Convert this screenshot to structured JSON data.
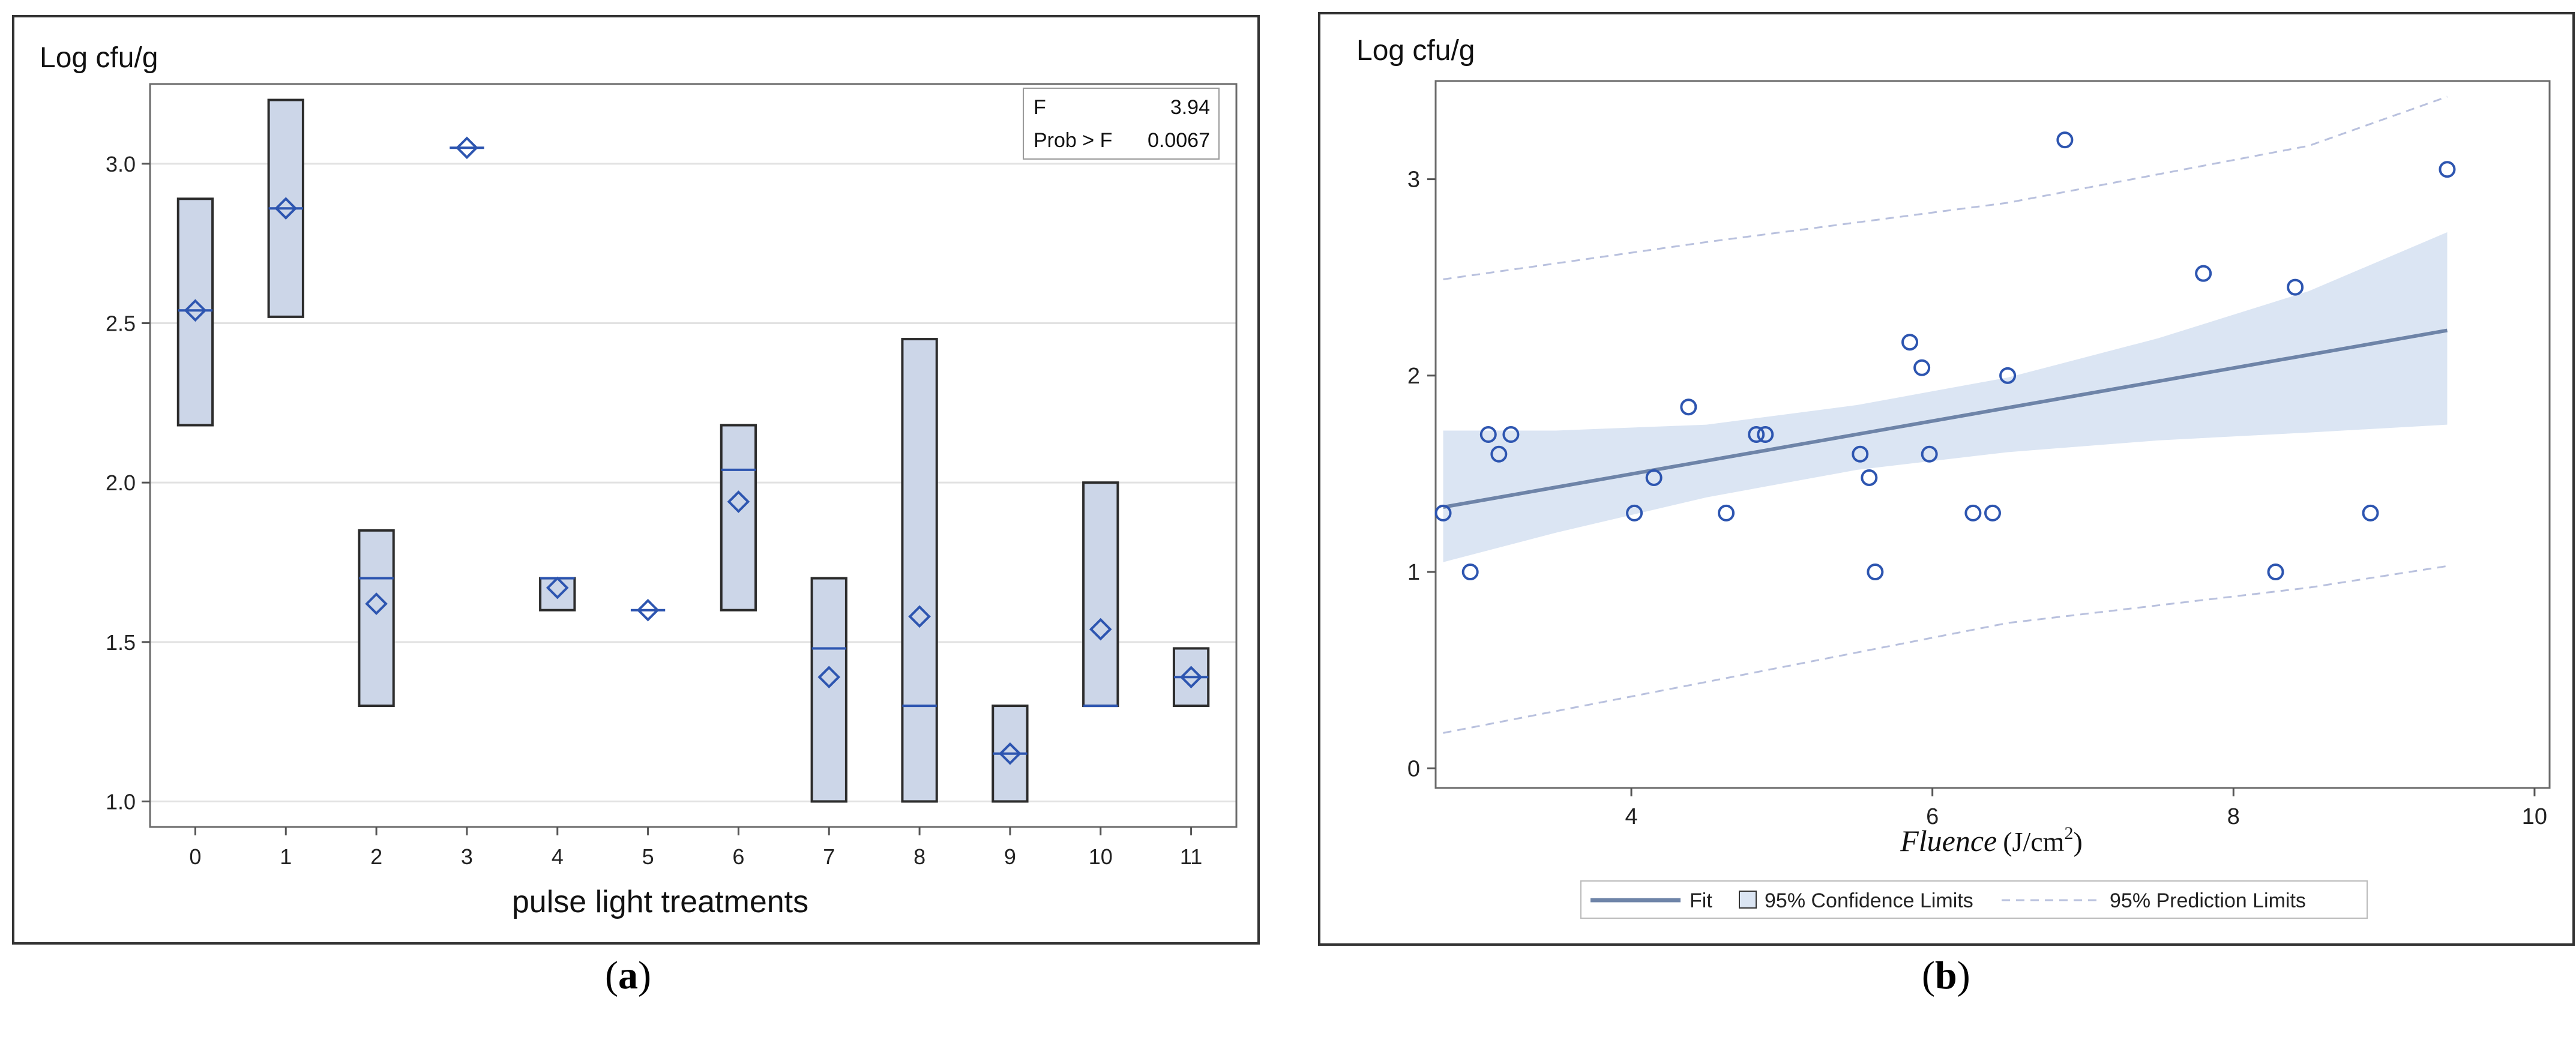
{
  "chart_data": [
    {
      "type": "box",
      "panel": "a",
      "ylabel": "Log cfu/g",
      "xlabel": "pulse light treatments",
      "ylim": [
        0.92,
        3.25
      ],
      "yticks": [
        "1.0",
        "1.5",
        "2.0",
        "2.5",
        "3.0"
      ],
      "ytick_values": [
        1.0,
        1.5,
        2.0,
        2.5,
        3.0
      ],
      "categories": [
        "0",
        "1",
        "2",
        "3",
        "4",
        "5",
        "6",
        "7",
        "8",
        "9",
        "10",
        "11"
      ],
      "boxes": [
        {
          "category": "0",
          "min": 2.18,
          "median": 2.54,
          "mean": 2.54,
          "max": 2.89
        },
        {
          "category": "1",
          "min": 2.52,
          "median": 2.86,
          "mean": 2.86,
          "max": 3.2
        },
        {
          "category": "2",
          "min": 1.3,
          "median": 1.7,
          "mean": 1.62,
          "max": 1.85
        },
        {
          "category": "3",
          "min": 3.05,
          "median": 3.05,
          "mean": 3.05,
          "max": 3.05
        },
        {
          "category": "4",
          "min": 1.6,
          "median": 1.7,
          "mean": 1.67,
          "max": 1.7
        },
        {
          "category": "5",
          "min": 1.6,
          "median": 1.6,
          "mean": 1.6,
          "max": 1.6
        },
        {
          "category": "6",
          "min": 1.6,
          "median": 2.04,
          "mean": 1.94,
          "max": 2.18
        },
        {
          "category": "7",
          "min": 1.0,
          "median": 1.48,
          "mean": 1.39,
          "max": 1.7
        },
        {
          "category": "8",
          "min": 1.0,
          "median": 1.3,
          "mean": 1.58,
          "max": 2.45
        },
        {
          "category": "9",
          "min": 1.0,
          "median": 1.15,
          "mean": 1.15,
          "max": 1.3
        },
        {
          "category": "10",
          "min": 1.3,
          "median": 1.3,
          "mean": 1.54,
          "max": 2.0
        },
        {
          "category": "11",
          "min": 1.3,
          "median": 1.39,
          "mean": 1.39,
          "max": 1.48
        }
      ],
      "stats": {
        "f_label": "F",
        "f_value": "3.94",
        "p_label": "Prob > F",
        "p_value": "0.0067"
      },
      "panel_label_open": "(",
      "panel_label_letter": "a",
      "panel_label_close": ")",
      "colors": {
        "box_fill": "#ccd6e8",
        "box_stroke": "#2c2c2c",
        "mean_marker": "#2d55b0",
        "grid": "#e2e2e2"
      }
    },
    {
      "type": "scatter",
      "panel": "b",
      "ylabel": "Log cfu/g",
      "xlabel_main": "Fluence",
      "xlabel_unit": "(J/cm",
      "xlabel_sup": "2",
      "xlabel_close": ")",
      "xlim": [
        2.7,
        10.1
      ],
      "ylim": [
        -0.1,
        3.5
      ],
      "xticks": [
        "4",
        "6",
        "8",
        "10"
      ],
      "xtick_values": [
        4,
        6,
        8,
        10
      ],
      "yticks": [
        "0",
        "1",
        "2",
        "3"
      ],
      "ytick_values": [
        0,
        1,
        2,
        3
      ],
      "points": [
        {
          "x": 2.75,
          "y": 1.3
        },
        {
          "x": 2.93,
          "y": 1.0
        },
        {
          "x": 3.05,
          "y": 1.7
        },
        {
          "x": 3.12,
          "y": 1.6
        },
        {
          "x": 3.2,
          "y": 1.7
        },
        {
          "x": 4.02,
          "y": 1.3
        },
        {
          "x": 4.15,
          "y": 1.48
        },
        {
          "x": 4.38,
          "y": 1.84
        },
        {
          "x": 4.63,
          "y": 1.3
        },
        {
          "x": 4.83,
          "y": 1.7
        },
        {
          "x": 4.89,
          "y": 1.7
        },
        {
          "x": 5.52,
          "y": 1.6
        },
        {
          "x": 5.58,
          "y": 1.48
        },
        {
          "x": 5.62,
          "y": 1.0
        },
        {
          "x": 5.85,
          "y": 2.17
        },
        {
          "x": 5.93,
          "y": 2.04
        },
        {
          "x": 5.98,
          "y": 1.6
        },
        {
          "x": 6.27,
          "y": 1.3
        },
        {
          "x": 6.4,
          "y": 1.3
        },
        {
          "x": 6.5,
          "y": 2.0
        },
        {
          "x": 6.88,
          "y": 3.2
        },
        {
          "x": 7.8,
          "y": 2.52
        },
        {
          "x": 8.28,
          "y": 1.0
        },
        {
          "x": 8.41,
          "y": 2.45
        },
        {
          "x": 8.91,
          "y": 1.3
        },
        {
          "x": 9.42,
          "y": 3.05
        }
      ],
      "fit": {
        "x0": 2.75,
        "y0": 1.33,
        "x1": 9.42,
        "y1": 2.23
      },
      "confidence_band": {
        "x": [
          2.75,
          3.5,
          4.5,
          5.5,
          6.5,
          7.5,
          8.5,
          9.42
        ],
        "lower": [
          1.05,
          1.2,
          1.38,
          1.52,
          1.61,
          1.67,
          1.71,
          1.75
        ],
        "upper": [
          1.72,
          1.72,
          1.75,
          1.85,
          1.99,
          2.19,
          2.43,
          2.73
        ]
      },
      "prediction_band": {
        "x": [
          2.75,
          4.5,
          6.5,
          8.5,
          9.42
        ],
        "lower": [
          0.18,
          0.44,
          0.74,
          0.92,
          1.03
        ],
        "upper": [
          2.49,
          2.68,
          2.88,
          3.17,
          3.42
        ]
      },
      "legend": {
        "fit": "Fit",
        "confidence": "95% Confidence Limits",
        "prediction": "95% Prediction Limits"
      },
      "panel_label_open": "(",
      "panel_label_letter": "b",
      "panel_label_close": ")",
      "colors": {
        "fit": "#6e84a8",
        "band": "#dbe5f3",
        "point": "#2d55b0",
        "prediction": "#b9c1de",
        "legend_border": "#bbbbbb"
      }
    }
  ]
}
